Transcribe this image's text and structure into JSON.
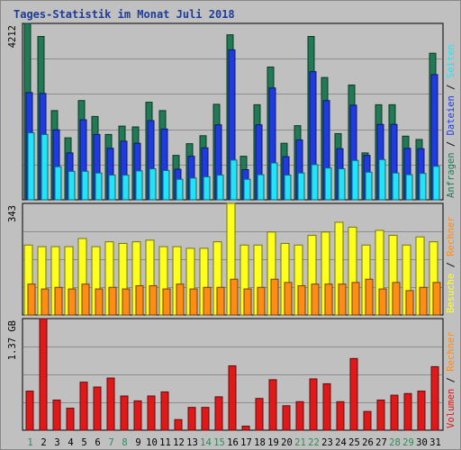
{
  "title": "Tages-Statistik im Monat Juli 2018",
  "colors": {
    "background": "#c0c0c0",
    "grid": "#8c8c8c",
    "anfragen": "#1f7a55",
    "dateien": "#1e3ae0",
    "seiten": "#22e4f8",
    "besuche": "#ffff1e",
    "rechner": "#ff8c14",
    "volumen": "#e01818",
    "weekday_label": "#000000",
    "weekend_label": "#2e8b57",
    "title": "#1e3c96"
  },
  "chart_data": [
    {
      "type": "bar",
      "panel": "top",
      "max_label": "4212",
      "ylim": [
        0,
        4212
      ],
      "categories": [
        "1",
        "2",
        "3",
        "4",
        "5",
        "6",
        "7",
        "8",
        "9",
        "10",
        "11",
        "12",
        "13",
        "14",
        "15",
        "16",
        "17",
        "18",
        "19",
        "20",
        "21",
        "22",
        "23",
        "24",
        "25",
        "26",
        "27",
        "28",
        "29",
        "30",
        "31"
      ],
      "legend": [
        "Anfragen",
        "Dateien",
        "Seiten"
      ],
      "series": [
        {
          "name": "Anfragen",
          "values": [
            4212,
            3900,
            2130,
            1480,
            2370,
            1990,
            1560,
            1760,
            1740,
            2330,
            2130,
            1060,
            1340,
            1530,
            2280,
            3940,
            1040,
            2270,
            3170,
            1350,
            1770,
            3900,
            2920,
            1580,
            2740,
            1120,
            2270,
            2270,
            1520,
            1440,
            3500
          ]
        },
        {
          "name": "Dateien",
          "values": [
            2560,
            2540,
            1670,
            1120,
            1910,
            1560,
            1230,
            1400,
            1350,
            1890,
            1690,
            730,
            1040,
            1240,
            1790,
            3580,
            720,
            1790,
            2670,
            1030,
            1430,
            3060,
            2370,
            1220,
            2260,
            1060,
            1800,
            1800,
            1230,
            1220,
            2990
          ]
        },
        {
          "name": "Seiten",
          "values": [
            1600,
            1560,
            790,
            680,
            680,
            640,
            590,
            590,
            690,
            740,
            700,
            490,
            520,
            550,
            590,
            950,
            490,
            600,
            880,
            590,
            640,
            840,
            760,
            740,
            940,
            660,
            960,
            640,
            600,
            630,
            800
          ]
        }
      ]
    },
    {
      "type": "bar",
      "panel": "middle",
      "max_label": "343",
      "ylim": [
        0,
        343
      ],
      "categories": [
        "1",
        "2",
        "3",
        "4",
        "5",
        "6",
        "7",
        "8",
        "9",
        "10",
        "11",
        "12",
        "13",
        "14",
        "15",
        "16",
        "17",
        "18",
        "19",
        "20",
        "21",
        "22",
        "23",
        "24",
        "25",
        "26",
        "27",
        "28",
        "29",
        "30",
        "31"
      ],
      "legend": [
        "Besuche",
        "Rechner"
      ],
      "series": [
        {
          "name": "Besuche",
          "values": [
            215,
            210,
            210,
            210,
            235,
            210,
            225,
            220,
            225,
            230,
            210,
            210,
            205,
            205,
            225,
            343,
            215,
            215,
            255,
            220,
            215,
            245,
            255,
            285,
            270,
            215,
            260,
            245,
            215,
            240,
            225
          ]
        },
        {
          "name": "Rechner",
          "values": [
            95,
            80,
            85,
            80,
            95,
            80,
            85,
            80,
            90,
            90,
            80,
            95,
            80,
            85,
            85,
            110,
            80,
            85,
            110,
            100,
            90,
            95,
            95,
            95,
            100,
            110,
            80,
            100,
            75,
            85,
            100
          ]
        }
      ]
    },
    {
      "type": "bar",
      "panel": "bottom",
      "max_label": "1.37 GB",
      "ylim": [
        0,
        1.37
      ],
      "categories": [
        "1",
        "2",
        "3",
        "4",
        "5",
        "6",
        "7",
        "8",
        "9",
        "10",
        "11",
        "12",
        "13",
        "14",
        "15",
        "16",
        "17",
        "18",
        "19",
        "20",
        "21",
        "22",
        "23",
        "24",
        "25",
        "26",
        "27",
        "28",
        "29",
        "30",
        "31"
      ],
      "legend": [
        "Volumen",
        "Rechner"
      ],
      "series": [
        {
          "name": "Volumen",
          "values": [
            0.48,
            1.37,
            0.37,
            0.27,
            0.59,
            0.53,
            0.64,
            0.42,
            0.36,
            0.42,
            0.47,
            0.13,
            0.28,
            0.28,
            0.41,
            0.79,
            0.05,
            0.39,
            0.62,
            0.3,
            0.35,
            0.63,
            0.57,
            0.35,
            0.88,
            0.23,
            0.37,
            0.43,
            0.45,
            0.48,
            0.78
          ]
        }
      ]
    }
  ],
  "x_labels": [
    {
      "day": "1",
      "weekend": true
    },
    {
      "day": "2",
      "weekend": false
    },
    {
      "day": "3",
      "weekend": false
    },
    {
      "day": "4",
      "weekend": false
    },
    {
      "day": "5",
      "weekend": false
    },
    {
      "day": "6",
      "weekend": false
    },
    {
      "day": "7",
      "weekend": true
    },
    {
      "day": "8",
      "weekend": true
    },
    {
      "day": "9",
      "weekend": false
    },
    {
      "day": "10",
      "weekend": false
    },
    {
      "day": "11",
      "weekend": false
    },
    {
      "day": "12",
      "weekend": false
    },
    {
      "day": "13",
      "weekend": false
    },
    {
      "day": "14",
      "weekend": true
    },
    {
      "day": "15",
      "weekend": true
    },
    {
      "day": "16",
      "weekend": false
    },
    {
      "day": "17",
      "weekend": false
    },
    {
      "day": "18",
      "weekend": false
    },
    {
      "day": "19",
      "weekend": false
    },
    {
      "day": "20",
      "weekend": false
    },
    {
      "day": "21",
      "weekend": true
    },
    {
      "day": "22",
      "weekend": true
    },
    {
      "day": "23",
      "weekend": false
    },
    {
      "day": "24",
      "weekend": false
    },
    {
      "day": "25",
      "weekend": false
    },
    {
      "day": "26",
      "weekend": false
    },
    {
      "day": "27",
      "weekend": false
    },
    {
      "day": "28",
      "weekend": true
    },
    {
      "day": "29",
      "weekend": true
    },
    {
      "day": "30",
      "weekend": false
    },
    {
      "day": "31",
      "weekend": false
    }
  ]
}
